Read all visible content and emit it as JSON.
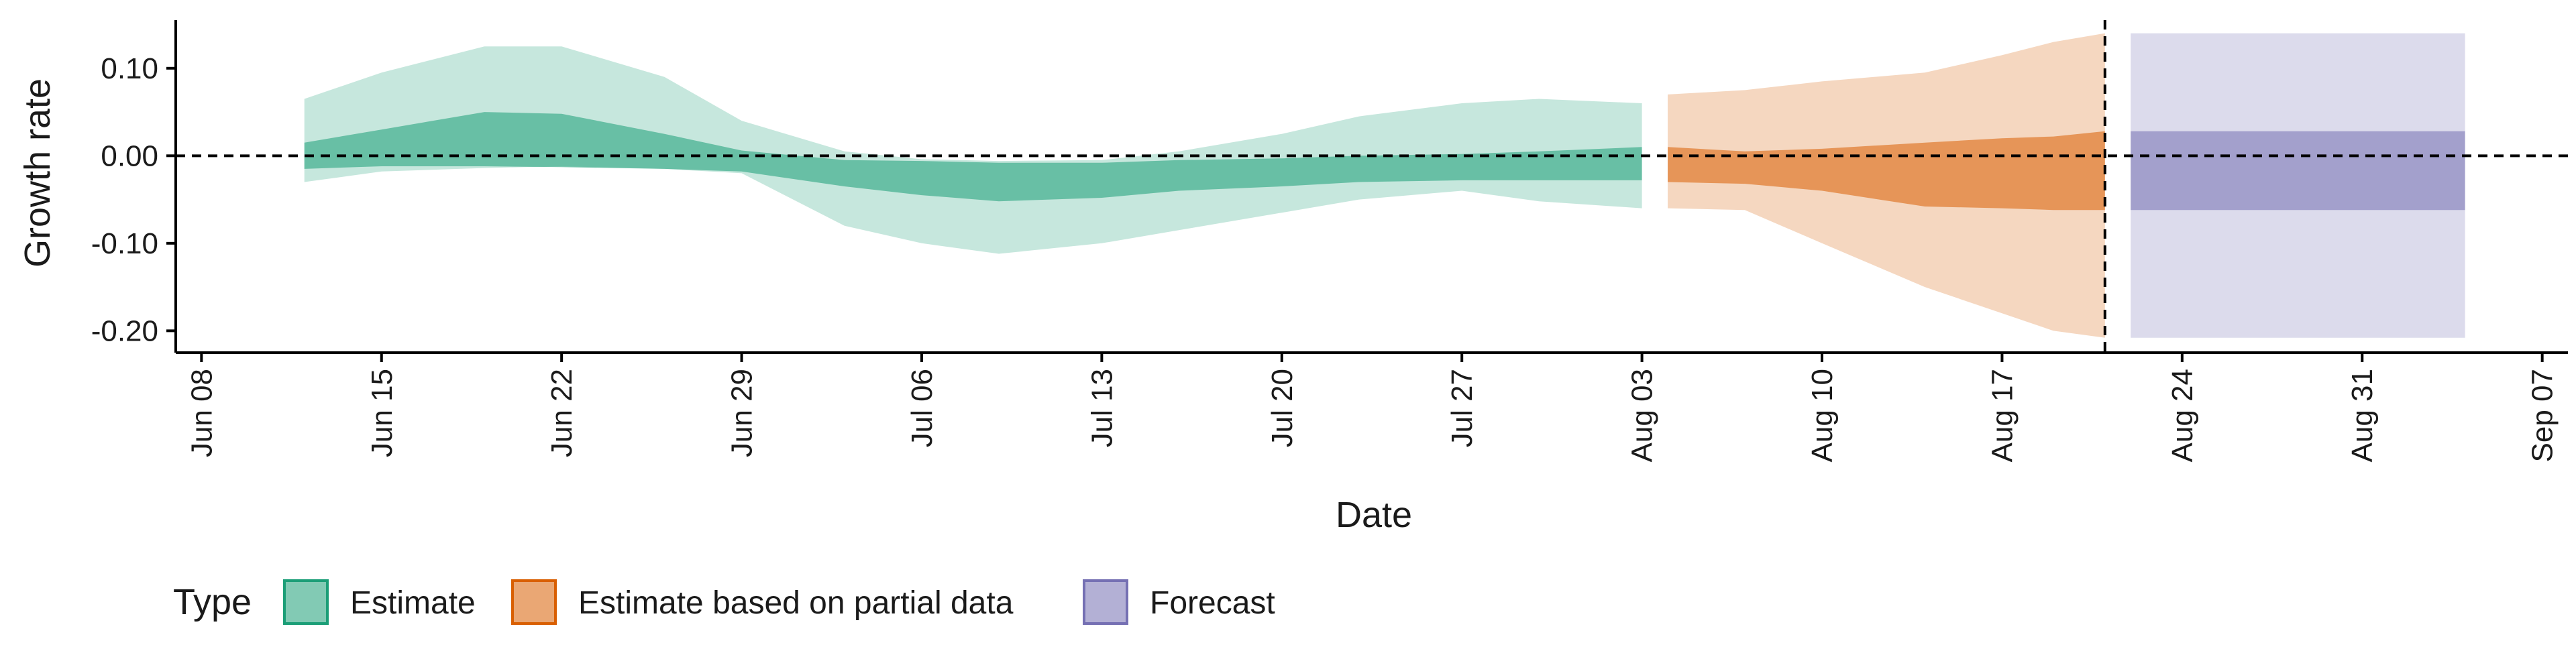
{
  "chart_data": {
    "type": "area",
    "xlabel": "Date",
    "ylabel": "Growth rate",
    "x_range": [
      "2020-06-07",
      "2020-09-08"
    ],
    "ylim": [
      -0.225,
      0.155
    ],
    "x_ticks": [
      {
        "date": "2020-06-08",
        "label": "Jun 08"
      },
      {
        "date": "2020-06-15",
        "label": "Jun 15"
      },
      {
        "date": "2020-06-22",
        "label": "Jun 22"
      },
      {
        "date": "2020-06-29",
        "label": "Jun 29"
      },
      {
        "date": "2020-07-06",
        "label": "Jul 06"
      },
      {
        "date": "2020-07-13",
        "label": "Jul 13"
      },
      {
        "date": "2020-07-20",
        "label": "Jul 20"
      },
      {
        "date": "2020-07-27",
        "label": "Jul 27"
      },
      {
        "date": "2020-08-03",
        "label": "Aug 03"
      },
      {
        "date": "2020-08-10",
        "label": "Aug 10"
      },
      {
        "date": "2020-08-17",
        "label": "Aug 17"
      },
      {
        "date": "2020-08-24",
        "label": "Aug 24"
      },
      {
        "date": "2020-08-31",
        "label": "Aug 31"
      },
      {
        "date": "2020-09-07",
        "label": "Sep 07"
      }
    ],
    "y_ticks": [
      {
        "value": 0.1,
        "label": "0.10"
      },
      {
        "value": 0.0,
        "label": "0.00"
      },
      {
        "value": -0.1,
        "label": "-0.10"
      },
      {
        "value": -0.2,
        "label": "-0.20"
      }
    ],
    "reference_lines": {
      "horizontal_y": 0.0,
      "vertical_date": "2020-08-21",
      "style": "dashed"
    },
    "legend": {
      "title": "Type",
      "position": "bottom"
    },
    "series": [
      {
        "name": "Estimate",
        "color": "#1b9e77",
        "points": [
          {
            "date": "2020-06-12",
            "inner": [
              -0.015,
              0.015
            ],
            "outer": [
              -0.03,
              0.065
            ]
          },
          {
            "date": "2020-06-15",
            "inner": [
              -0.012,
              0.03
            ],
            "outer": [
              -0.018,
              0.095
            ]
          },
          {
            "date": "2020-06-19",
            "inner": [
              -0.012,
              0.05
            ],
            "outer": [
              -0.014,
              0.125
            ]
          },
          {
            "date": "2020-06-22",
            "inner": [
              -0.013,
              0.048
            ],
            "outer": [
              -0.012,
              0.125
            ]
          },
          {
            "date": "2020-06-26",
            "inner": [
              -0.015,
              0.025
            ],
            "outer": [
              -0.015,
              0.09
            ]
          },
          {
            "date": "2020-06-29",
            "inner": [
              -0.018,
              0.006
            ],
            "outer": [
              -0.02,
              0.04
            ]
          },
          {
            "date": "2020-07-03",
            "inner": [
              -0.035,
              -0.005
            ],
            "outer": [
              -0.08,
              0.005
            ]
          },
          {
            "date": "2020-07-06",
            "inner": [
              -0.045,
              -0.006
            ],
            "outer": [
              -0.1,
              -0.004
            ]
          },
          {
            "date": "2020-07-09",
            "inner": [
              -0.052,
              -0.008
            ],
            "outer": [
              -0.112,
              -0.006
            ]
          },
          {
            "date": "2020-07-13",
            "inner": [
              -0.048,
              -0.008
            ],
            "outer": [
              -0.1,
              -0.005
            ]
          },
          {
            "date": "2020-07-16",
            "inner": [
              -0.04,
              -0.005
            ],
            "outer": [
              -0.085,
              0.005
            ]
          },
          {
            "date": "2020-07-20",
            "inner": [
              -0.035,
              -0.003
            ],
            "outer": [
              -0.065,
              0.025
            ]
          },
          {
            "date": "2020-07-23",
            "inner": [
              -0.03,
              0.0
            ],
            "outer": [
              -0.05,
              0.045
            ]
          },
          {
            "date": "2020-07-27",
            "inner": [
              -0.028,
              0.002
            ],
            "outer": [
              -0.04,
              0.06
            ]
          },
          {
            "date": "2020-07-30",
            "inner": [
              -0.028,
              0.005
            ],
            "outer": [
              -0.052,
              0.065
            ]
          },
          {
            "date": "2020-08-03",
            "inner": [
              -0.028,
              0.01
            ],
            "outer": [
              -0.06,
              0.06
            ]
          }
        ]
      },
      {
        "name": "Estimate based on partial data",
        "color": "#d95f02",
        "points": [
          {
            "date": "2020-08-04",
            "inner": [
              -0.03,
              0.01
            ],
            "outer": [
              -0.06,
              0.07
            ]
          },
          {
            "date": "2020-08-07",
            "inner": [
              -0.032,
              0.005
            ],
            "outer": [
              -0.062,
              0.075
            ]
          },
          {
            "date": "2020-08-10",
            "inner": [
              -0.04,
              0.008
            ],
            "outer": [
              -0.1,
              0.085
            ]
          },
          {
            "date": "2020-08-14",
            "inner": [
              -0.058,
              0.015
            ],
            "outer": [
              -0.15,
              0.095
            ]
          },
          {
            "date": "2020-08-17",
            "inner": [
              -0.06,
              0.02
            ],
            "outer": [
              -0.18,
              0.115
            ]
          },
          {
            "date": "2020-08-19",
            "inner": [
              -0.062,
              0.022
            ],
            "outer": [
              -0.2,
              0.13
            ]
          },
          {
            "date": "2020-08-21",
            "inner": [
              -0.062,
              0.028
            ],
            "outer": [
              -0.208,
              0.14
            ]
          }
        ]
      },
      {
        "name": "Forecast",
        "color": "#7570b3",
        "points": [
          {
            "date": "2020-08-22",
            "inner": [
              -0.062,
              0.028
            ],
            "outer": [
              -0.208,
              0.14
            ]
          },
          {
            "date": "2020-09-04",
            "inner": [
              -0.062,
              0.028
            ],
            "outer": [
              -0.208,
              0.14
            ]
          }
        ]
      }
    ]
  }
}
